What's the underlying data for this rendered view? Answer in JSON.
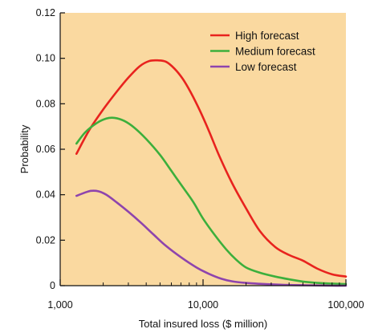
{
  "chart_data": {
    "type": "line",
    "title": "",
    "xlabel": "Total insured loss ($ million)",
    "ylabel": "Probability",
    "x_scale": "log",
    "xlim": [
      1000,
      100000
    ],
    "ylim": [
      0,
      0.12
    ],
    "x_ticks": [
      {
        "value": 1000,
        "label": "1,000"
      },
      {
        "value": 10000,
        "label": "10,000"
      },
      {
        "value": 100000,
        "label": "100,000"
      }
    ],
    "y_ticks": [
      {
        "value": 0,
        "label": "0"
      },
      {
        "value": 0.02,
        "label": "0.02"
      },
      {
        "value": 0.04,
        "label": "0.04"
      },
      {
        "value": 0.06,
        "label": "0.06"
      },
      {
        "value": 0.08,
        "label": "0.08"
      },
      {
        "value": 0.1,
        "label": "0.10"
      },
      {
        "value": 0.12,
        "label": "0.12"
      }
    ],
    "grid": false,
    "legend_position": "top-right",
    "plot_background": "#FAD9A0",
    "series": [
      {
        "name": "High forecast",
        "color": "#E8231E",
        "x": [
          1300,
          1600,
          2000,
          2500,
          3000,
          3600,
          4200,
          4800,
          5500,
          6300,
          7200,
          8200,
          9500,
          11000,
          13000,
          16000,
          20000,
          25000,
          32000,
          40000,
          50000,
          63000,
          80000,
          100000
        ],
        "y": [
          0.058,
          0.0685,
          0.0775,
          0.0855,
          0.0915,
          0.0965,
          0.0988,
          0.0991,
          0.0985,
          0.0955,
          0.091,
          0.085,
          0.077,
          0.068,
          0.057,
          0.045,
          0.034,
          0.024,
          0.017,
          0.0135,
          0.011,
          0.0075,
          0.005,
          0.004
        ]
      },
      {
        "name": "Medium forecast",
        "color": "#3CAF3C",
        "x": [
          1300,
          1500,
          1800,
          2100,
          2400,
          2800,
          3300,
          4000,
          5000,
          6000,
          7000,
          8500,
          10000,
          12000,
          14500,
          17000,
          20000,
          25000,
          32000,
          40000,
          50000,
          63000,
          80000,
          100000
        ],
        "y": [
          0.0625,
          0.0675,
          0.0715,
          0.0735,
          0.0738,
          0.0725,
          0.0695,
          0.0645,
          0.0575,
          0.0505,
          0.0445,
          0.037,
          0.0295,
          0.0225,
          0.016,
          0.0115,
          0.008,
          0.0057,
          0.004,
          0.0028,
          0.0018,
          0.0012,
          0.0009,
          0.0007
        ]
      },
      {
        "name": "Low forecast",
        "color": "#8E44AD",
        "x": [
          1300,
          1500,
          1650,
          1850,
          2100,
          2500,
          3000,
          3700,
          4500,
          5500,
          7000,
          9000,
          11000,
          13500,
          16000,
          20000,
          25000,
          32000,
          40000,
          50000,
          63000,
          80000,
          100000
        ],
        "y": [
          0.0395,
          0.041,
          0.0417,
          0.0415,
          0.04,
          0.0365,
          0.0325,
          0.0275,
          0.0225,
          0.0175,
          0.0125,
          0.008,
          0.0052,
          0.003,
          0.0019,
          0.0012,
          0.0008,
          0.0005,
          0.0003,
          0.0002,
          0.0001,
          0.0,
          0.0
        ]
      }
    ]
  }
}
